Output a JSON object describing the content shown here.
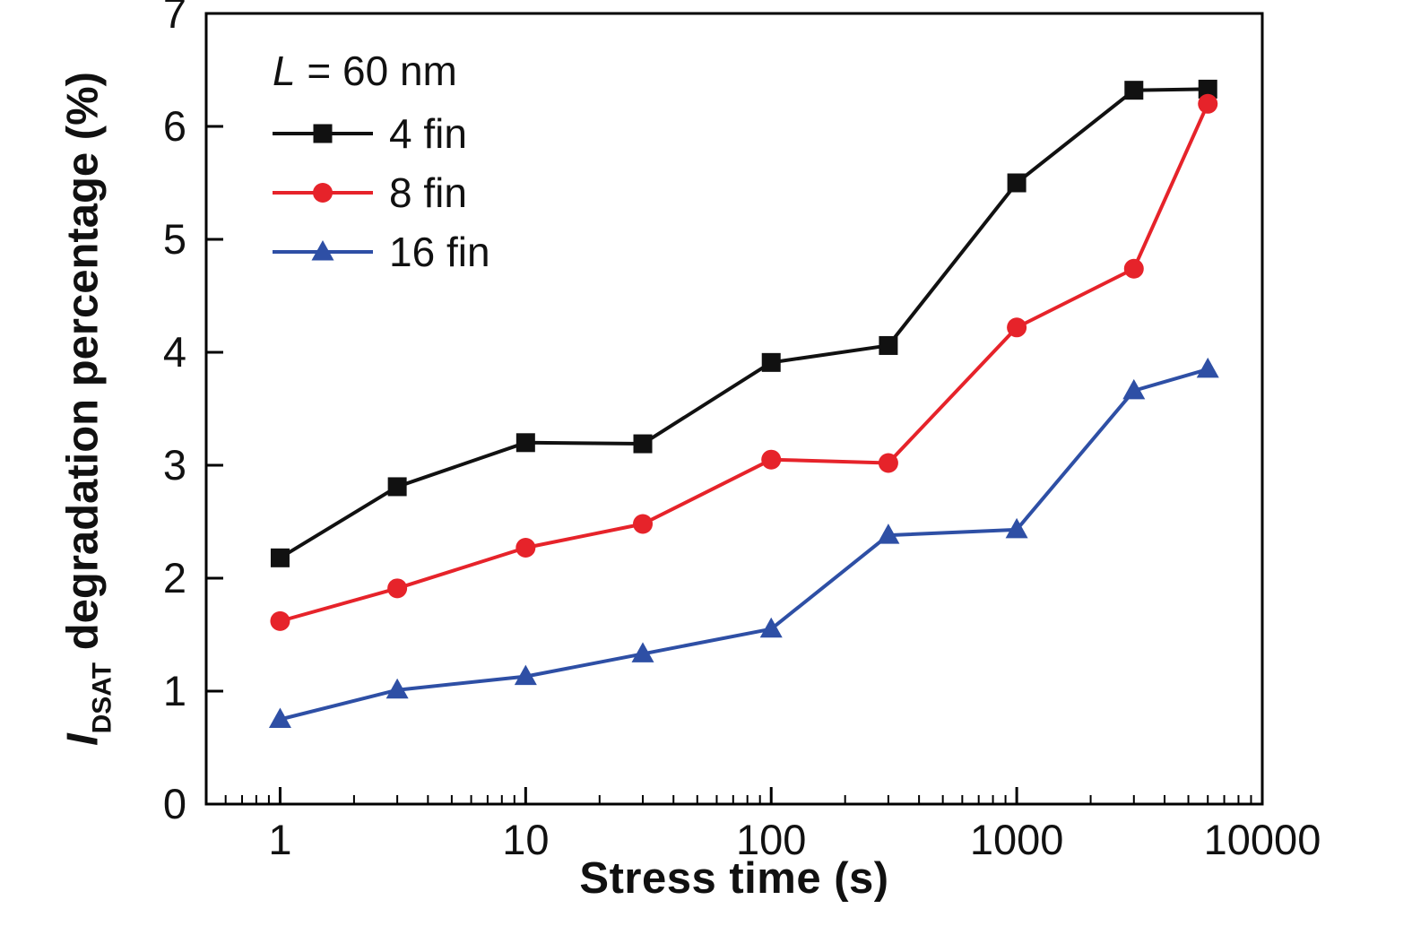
{
  "chart_data": {
    "type": "line",
    "title": "",
    "xlabel": "Stress time (s)",
    "ylabel_prefix": "I",
    "ylabel_sub": "DSAT",
    "ylabel_rest": " degradation percentage (%)",
    "x_scale": "log",
    "xlim": [
      0.5,
      10000
    ],
    "ylim": [
      0,
      7
    ],
    "x_ticks": [
      1,
      10,
      100,
      1000,
      10000
    ],
    "x_tick_labels": [
      "1",
      "10",
      "100",
      "1000",
      "10000"
    ],
    "y_ticks": [
      0,
      1,
      2,
      3,
      4,
      5,
      6,
      7
    ],
    "grid": false,
    "legend_position": "top-left-inside",
    "legend_title": {
      "var": "L",
      "rest": " = 60 nm"
    },
    "frame_color": "#000000",
    "x": [
      1,
      3,
      10,
      30,
      100,
      300,
      1000,
      3000,
      6000
    ],
    "series": [
      {
        "name": "4 fin",
        "marker": "square",
        "color": "#111111",
        "values": [
          2.18,
          2.81,
          3.2,
          3.19,
          3.91,
          4.06,
          5.5,
          6.32,
          6.33
        ]
      },
      {
        "name": "8 fin",
        "marker": "circle",
        "color": "#e6232a",
        "values": [
          1.62,
          1.91,
          2.27,
          2.48,
          3.05,
          3.02,
          4.22,
          4.74,
          6.2
        ]
      },
      {
        "name": "16 fin",
        "marker": "triangle",
        "color": "#2e4fa5",
        "values": [
          0.75,
          1.01,
          1.13,
          1.33,
          1.55,
          2.38,
          2.43,
          3.66,
          3.85
        ]
      }
    ]
  }
}
